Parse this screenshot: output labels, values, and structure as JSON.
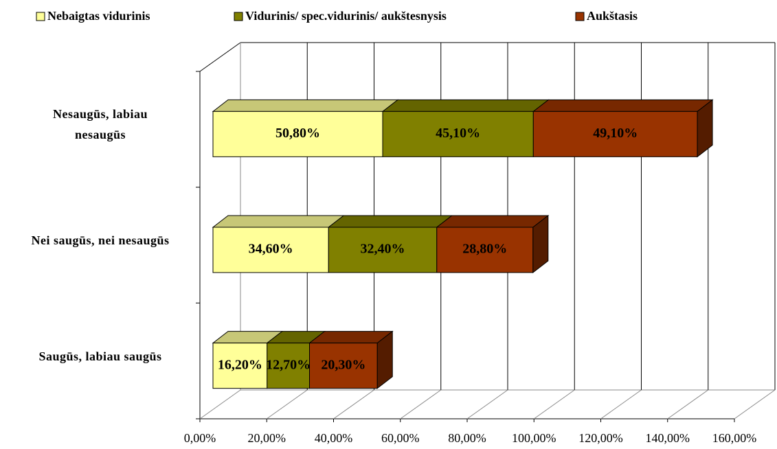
{
  "chart_data": {
    "type": "bar3d-stacked-horizontal",
    "categories": [
      "Nesaugūs, labiau nesaugūs",
      "Nei saugūs, nei nesaugūs",
      "Saugūs, labiau saugūs"
    ],
    "series": [
      {
        "name": "Nebaigtas vidurinis",
        "color": "#ffff99",
        "values": [
          50.8,
          34.6,
          16.2
        ],
        "value_labels": [
          "50,80%",
          "34,60%",
          "16,20%"
        ]
      },
      {
        "name": "Vidurinis/ spec.vidurinis/ aukštesnysis",
        "color": "#808000",
        "values": [
          45.1,
          32.4,
          12.7
        ],
        "value_labels": [
          "45,10%",
          "32,40%",
          "12,70%"
        ]
      },
      {
        "name": "Aukštasis",
        "color": "#993300",
        "values": [
          49.1,
          28.8,
          20.3
        ],
        "value_labels": [
          "49,10%",
          "28,80%",
          "20,30%"
        ]
      }
    ],
    "xlim": [
      0,
      160
    ],
    "xticks": [
      {
        "value": 0,
        "label": "0,00%"
      },
      {
        "value": 20,
        "label": "20,00%"
      },
      {
        "value": 40,
        "label": "40,00%"
      },
      {
        "value": 60,
        "label": "60,00%"
      },
      {
        "value": 80,
        "label": "80,00%"
      },
      {
        "value": 100,
        "label": "100,00%"
      },
      {
        "value": 120,
        "label": "120,00%"
      },
      {
        "value": 140,
        "label": "140,00%"
      },
      {
        "value": 160,
        "label": "160,00%"
      }
    ],
    "grid": true,
    "legend": "top"
  }
}
